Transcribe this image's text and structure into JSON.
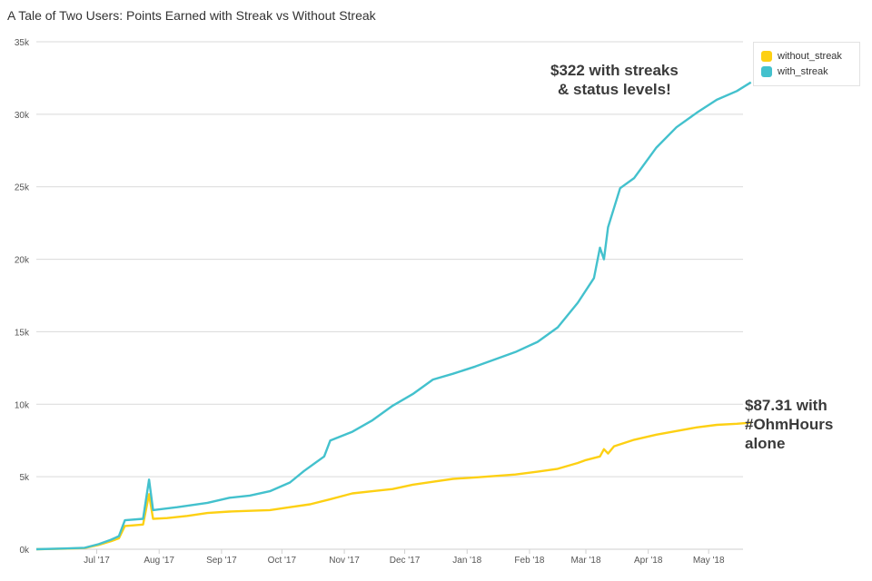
{
  "chart_data": {
    "type": "line",
    "title": "A Tale of Two Users: Points Earned with Streak vs Without Streak",
    "xlabel": "",
    "ylabel": "",
    "x_ticks": [
      "Jul '17",
      "Aug '17",
      "Sep '17",
      "Oct '17",
      "Nov '17",
      "Dec '17",
      "Jan '18",
      "Feb '18",
      "Mar '18",
      "Apr '18",
      "May '18"
    ],
    "y_ticks": [
      "0k",
      "5k",
      "10k",
      "15k",
      "20k",
      "25k",
      "30k",
      "35k"
    ],
    "ylim": [
      0,
      35000
    ],
    "xlim": [
      "2017-06-01",
      "2018-05-25"
    ],
    "grid": true,
    "legend_position": "top-right",
    "series": [
      {
        "name": "without_streak",
        "color": "#fdd013",
        "points": [
          [
            "2017-06-01",
            0
          ],
          [
            "2017-06-15",
            40
          ],
          [
            "2017-06-25",
            80
          ],
          [
            "2017-07-02",
            300
          ],
          [
            "2017-07-08",
            550
          ],
          [
            "2017-07-12",
            750
          ],
          [
            "2017-07-15",
            1600
          ],
          [
            "2017-07-24",
            1700
          ],
          [
            "2017-07-27",
            3800
          ],
          [
            "2017-07-29",
            2100
          ],
          [
            "2017-08-05",
            2150
          ],
          [
            "2017-08-15",
            2300
          ],
          [
            "2017-08-25",
            2500
          ],
          [
            "2017-09-05",
            2600
          ],
          [
            "2017-09-15",
            2650
          ],
          [
            "2017-09-25",
            2700
          ],
          [
            "2017-10-05",
            2900
          ],
          [
            "2017-10-15",
            3100
          ],
          [
            "2017-10-25",
            3450
          ],
          [
            "2017-11-05",
            3850
          ],
          [
            "2017-11-15",
            4000
          ],
          [
            "2017-11-25",
            4150
          ],
          [
            "2017-12-05",
            4450
          ],
          [
            "2017-12-15",
            4650
          ],
          [
            "2017-12-25",
            4850
          ],
          [
            "2018-01-05",
            4950
          ],
          [
            "2018-01-15",
            5050
          ],
          [
            "2018-01-25",
            5150
          ],
          [
            "2018-02-05",
            5350
          ],
          [
            "2018-02-15",
            5550
          ],
          [
            "2018-02-25",
            5950
          ],
          [
            "2018-03-01",
            6150
          ],
          [
            "2018-03-08",
            6400
          ],
          [
            "2018-03-10",
            6900
          ],
          [
            "2018-03-12",
            6600
          ],
          [
            "2018-03-15",
            7100
          ],
          [
            "2018-03-25",
            7550
          ],
          [
            "2018-04-05",
            7900
          ],
          [
            "2018-04-15",
            8150
          ],
          [
            "2018-04-25",
            8400
          ],
          [
            "2018-05-05",
            8580
          ],
          [
            "2018-05-15",
            8650
          ],
          [
            "2018-05-22",
            8731
          ]
        ]
      },
      {
        "name": "with_streak",
        "color": "#43c1cd",
        "points": [
          [
            "2017-06-01",
            0
          ],
          [
            "2017-06-15",
            50
          ],
          [
            "2017-06-25",
            100
          ],
          [
            "2017-07-02",
            350
          ],
          [
            "2017-07-08",
            650
          ],
          [
            "2017-07-12",
            900
          ],
          [
            "2017-07-15",
            2000
          ],
          [
            "2017-07-24",
            2100
          ],
          [
            "2017-07-27",
            4800
          ],
          [
            "2017-07-29",
            2700
          ],
          [
            "2017-08-10",
            2900
          ],
          [
            "2017-08-25",
            3200
          ],
          [
            "2017-09-05",
            3550
          ],
          [
            "2017-09-15",
            3700
          ],
          [
            "2017-09-25",
            4000
          ],
          [
            "2017-10-05",
            4600
          ],
          [
            "2017-10-12",
            5400
          ],
          [
            "2017-10-22",
            6400
          ],
          [
            "2017-10-25",
            7500
          ],
          [
            "2017-11-05",
            8100
          ],
          [
            "2017-11-15",
            8900
          ],
          [
            "2017-11-25",
            9900
          ],
          [
            "2017-12-05",
            10700
          ],
          [
            "2017-12-15",
            11700
          ],
          [
            "2017-12-25",
            12100
          ],
          [
            "2018-01-05",
            12600
          ],
          [
            "2018-01-15",
            13100
          ],
          [
            "2018-01-25",
            13600
          ],
          [
            "2018-02-05",
            14300
          ],
          [
            "2018-02-15",
            15300
          ],
          [
            "2018-02-25",
            17000
          ],
          [
            "2018-03-05",
            18700
          ],
          [
            "2018-03-08",
            20800
          ],
          [
            "2018-03-10",
            20000
          ],
          [
            "2018-03-12",
            22200
          ],
          [
            "2018-03-18",
            24900
          ],
          [
            "2018-03-25",
            25600
          ],
          [
            "2018-04-05",
            27700
          ],
          [
            "2018-04-15",
            29100
          ],
          [
            "2018-04-25",
            30100
          ],
          [
            "2018-05-05",
            31000
          ],
          [
            "2018-05-15",
            31600
          ],
          [
            "2018-05-22",
            32200
          ]
        ]
      }
    ],
    "annotations": [
      {
        "lines": [
          "$322 with streaks",
          "& status levels!"
        ]
      },
      {
        "lines": [
          "$87.31 with",
          "#OhmHours",
          "alone"
        ]
      }
    ]
  },
  "legend": {
    "items": [
      {
        "label": "without_streak",
        "color": "#fdd013"
      },
      {
        "label": "with_streak",
        "color": "#43c1cd"
      }
    ]
  }
}
